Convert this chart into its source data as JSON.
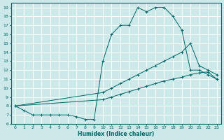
{
  "xlabel": "Humidex (Indice chaleur)",
  "bg_color": "#cce8e8",
  "grid_color": "#ffffff",
  "line_color": "#006666",
  "xlim": [
    -0.5,
    23.5
  ],
  "ylim": [
    6,
    19.5
  ],
  "xticks": [
    0,
    1,
    2,
    3,
    4,
    5,
    6,
    7,
    8,
    9,
    10,
    11,
    12,
    13,
    14,
    15,
    16,
    17,
    18,
    19,
    20,
    21,
    22,
    23
  ],
  "yticks": [
    6,
    7,
    8,
    9,
    10,
    11,
    12,
    13,
    14,
    15,
    16,
    17,
    18,
    19
  ],
  "line1_x": [
    0,
    1,
    2,
    3,
    4,
    5,
    6,
    7,
    8,
    9,
    10,
    11,
    12,
    13,
    14,
    15,
    16,
    17,
    18,
    19,
    20,
    21,
    22,
    23
  ],
  "line1_y": [
    8,
    7.5,
    7,
    7,
    7,
    7,
    7,
    6.8,
    6.5,
    6.5,
    13,
    16,
    17,
    17,
    19,
    18.5,
    19,
    19,
    18,
    16.5,
    12,
    12,
    11.5,
    11
  ],
  "line2_x": [
    0,
    10,
    11,
    12,
    13,
    14,
    15,
    16,
    17,
    18,
    19,
    20,
    21,
    22,
    23
  ],
  "line2_y": [
    8,
    9.5,
    10,
    10.5,
    11,
    11.5,
    12,
    12.5,
    13,
    13.5,
    14,
    15,
    12.5,
    12,
    11.5
  ],
  "line3_x": [
    0,
    10,
    11,
    12,
    13,
    14,
    15,
    16,
    17,
    18,
    19,
    20,
    21,
    22,
    23
  ],
  "line3_y": [
    8,
    8.7,
    9,
    9.3,
    9.6,
    9.9,
    10.2,
    10.5,
    10.8,
    11,
    11.2,
    11.5,
    11.7,
    11.8,
    11
  ]
}
